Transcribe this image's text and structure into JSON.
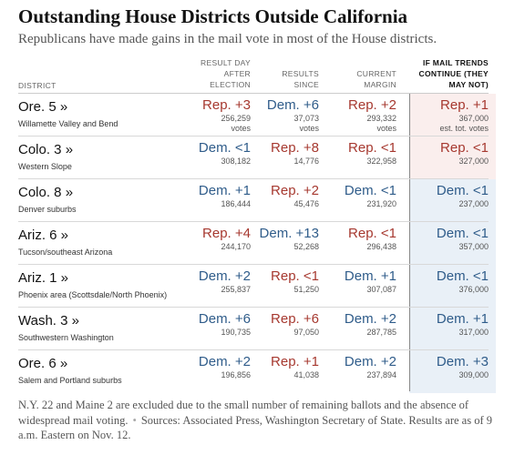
{
  "title": "Outstanding House Districts Outside California",
  "subtitle": "Republicans have made gains in the mail vote in most of the House districts.",
  "headers": {
    "district": "DISTRICT",
    "result_day_after": [
      "RESULT DAY",
      "AFTER",
      "ELECTION"
    ],
    "results_since": [
      "RESULTS",
      "SINCE"
    ],
    "current_margin": [
      "CURRENT",
      "MARGIN"
    ],
    "if_mail_trends": [
      "IF MAIL TRENDS",
      "CONTINUE (THEY",
      "MAY NOT)"
    ]
  },
  "colors": {
    "rep": "#a6382f",
    "dem": "#2f5c8a",
    "rep_bg": "#faeeed",
    "dem_bg": "#e9f0f7"
  },
  "rows": [
    {
      "district": "Ore. 5 »",
      "area": "Willamette Valley and Bend",
      "c1": {
        "label": "Rep. +3",
        "party": "rep",
        "votes": "256,259",
        "unit": "votes"
      },
      "c2": {
        "label": "Dem. +6",
        "party": "dem",
        "votes": "37,073",
        "unit": "votes"
      },
      "c3": {
        "label": "Rep. +2",
        "party": "rep",
        "votes": "293,332",
        "unit": "votes"
      },
      "c4": {
        "label": "Rep. +1",
        "party": "rep",
        "votes": "367,000",
        "unit": "est. tot. votes"
      }
    },
    {
      "district": "Colo. 3 »",
      "area": "Western Slope",
      "c1": {
        "label": "Dem. <1",
        "party": "dem",
        "votes": "308,182"
      },
      "c2": {
        "label": "Rep. +8",
        "party": "rep",
        "votes": "14,776"
      },
      "c3": {
        "label": "Rep. <1",
        "party": "rep",
        "votes": "322,958"
      },
      "c4": {
        "label": "Rep. <1",
        "party": "rep",
        "votes": "327,000"
      }
    },
    {
      "district": "Colo. 8 »",
      "area": "Denver suburbs",
      "c1": {
        "label": "Dem. +1",
        "party": "dem",
        "votes": "186,444"
      },
      "c2": {
        "label": "Rep. +2",
        "party": "rep",
        "votes": "45,476"
      },
      "c3": {
        "label": "Dem. <1",
        "party": "dem",
        "votes": "231,920"
      },
      "c4": {
        "label": "Dem. <1",
        "party": "dem",
        "votes": "237,000"
      }
    },
    {
      "district": "Ariz. 6 »",
      "area": "Tucson/southeast Arizona",
      "c1": {
        "label": "Rep. +4",
        "party": "rep",
        "votes": "244,170"
      },
      "c2": {
        "label": "Dem. +13",
        "party": "dem",
        "votes": "52,268"
      },
      "c3": {
        "label": "Rep. <1",
        "party": "rep",
        "votes": "296,438"
      },
      "c4": {
        "label": "Dem. <1",
        "party": "dem",
        "votes": "357,000"
      }
    },
    {
      "district": "Ariz. 1 »",
      "area": "Phoenix area (Scottsdale/North Phoenix)",
      "c1": {
        "label": "Dem. +2",
        "party": "dem",
        "votes": "255,837"
      },
      "c2": {
        "label": "Rep. <1",
        "party": "rep",
        "votes": "51,250"
      },
      "c3": {
        "label": "Dem. +1",
        "party": "dem",
        "votes": "307,087"
      },
      "c4": {
        "label": "Dem. <1",
        "party": "dem",
        "votes": "376,000"
      }
    },
    {
      "district": "Wash. 3 »",
      "area": "Southwestern Washington",
      "c1": {
        "label": "Dem. +6",
        "party": "dem",
        "votes": "190,735"
      },
      "c2": {
        "label": "Rep. +6",
        "party": "rep",
        "votes": "97,050"
      },
      "c3": {
        "label": "Dem. +2",
        "party": "dem",
        "votes": "287,785"
      },
      "c4": {
        "label": "Dem. +1",
        "party": "dem",
        "votes": "317,000"
      }
    },
    {
      "district": "Ore. 6 »",
      "area": "Salem and Portland suburbs",
      "c1": {
        "label": "Dem. +2",
        "party": "dem",
        "votes": "196,856"
      },
      "c2": {
        "label": "Rep. +1",
        "party": "rep",
        "votes": "41,038"
      },
      "c3": {
        "label": "Dem. +2",
        "party": "dem",
        "votes": "237,894"
      },
      "c4": {
        "label": "Dem. +3",
        "party": "dem",
        "votes": "309,000"
      }
    }
  ],
  "footnote": {
    "note": "N.Y. 22 and Maine 2 are excluded due to the small number of remaining ballots and the absence of widespread mail voting.",
    "separator": "•",
    "sources": "Sources: Associated Press, Washington Secretary of State. Results are as of 9 a.m. Eastern on Nov. 12."
  }
}
